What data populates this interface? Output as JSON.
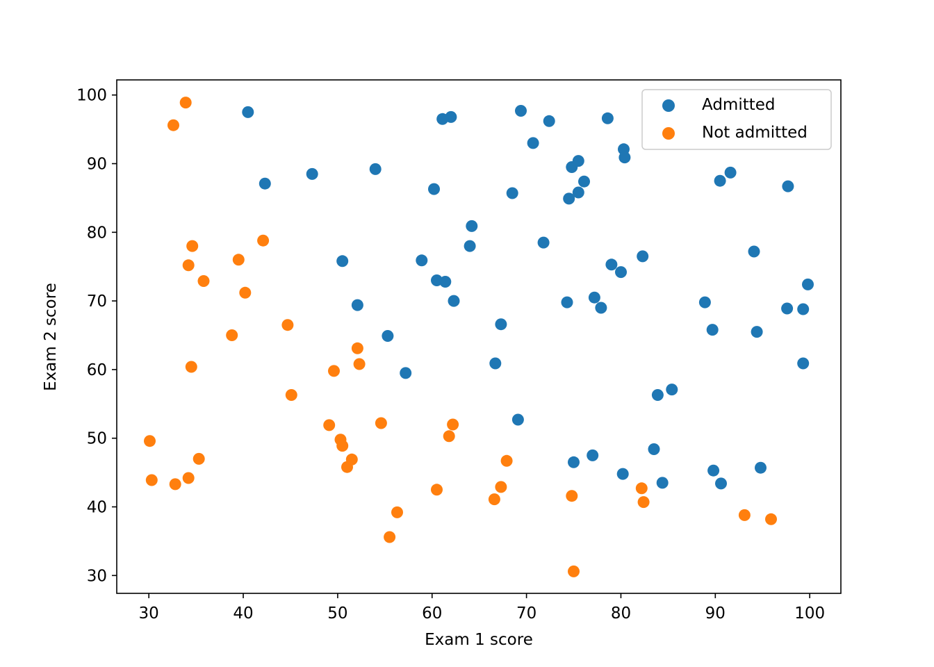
{
  "chart_data": {
    "type": "scatter",
    "xlabel": "Exam 1 score",
    "ylabel": "Exam 2 score",
    "xlim": [
      26.6,
      103.3
    ],
    "ylim": [
      27.4,
      102.2
    ],
    "x_ticks": [
      30,
      40,
      50,
      60,
      70,
      80,
      90,
      100
    ],
    "y_ticks": [
      30,
      40,
      50,
      60,
      70,
      80,
      90,
      100
    ],
    "grid": false,
    "legend_position": "top-right",
    "series": [
      {
        "name": "Admitted",
        "color": "#1f77b4",
        "points": [
          [
            40.5,
            97.5
          ],
          [
            62.0,
            96.8
          ],
          [
            61.1,
            96.5
          ],
          [
            69.4,
            97.7
          ],
          [
            72.4,
            96.2
          ],
          [
            78.6,
            96.6
          ],
          [
            70.7,
            93.0
          ],
          [
            80.3,
            92.1
          ],
          [
            80.4,
            90.9
          ],
          [
            75.5,
            90.4
          ],
          [
            74.8,
            89.5
          ],
          [
            42.3,
            87.1
          ],
          [
            47.3,
            88.5
          ],
          [
            54.0,
            89.2
          ],
          [
            60.2,
            86.3
          ],
          [
            68.5,
            85.7
          ],
          [
            75.5,
            85.8
          ],
          [
            76.1,
            87.4
          ],
          [
            74.5,
            84.9
          ],
          [
            90.5,
            87.5
          ],
          [
            91.6,
            88.7
          ],
          [
            97.7,
            86.7
          ],
          [
            64.2,
            80.9
          ],
          [
            64.0,
            78.0
          ],
          [
            71.8,
            78.5
          ],
          [
            82.3,
            76.5
          ],
          [
            79.0,
            75.3
          ],
          [
            80.0,
            74.2
          ],
          [
            94.1,
            77.2
          ],
          [
            50.5,
            75.8
          ],
          [
            58.9,
            75.9
          ],
          [
            60.5,
            73.0
          ],
          [
            61.4,
            72.8
          ],
          [
            62.3,
            70.0
          ],
          [
            52.1,
            69.4
          ],
          [
            74.3,
            69.8
          ],
          [
            77.2,
            70.5
          ],
          [
            77.9,
            69.0
          ],
          [
            88.9,
            69.8
          ],
          [
            99.8,
            72.4
          ],
          [
            97.6,
            68.9
          ],
          [
            99.3,
            68.8
          ],
          [
            67.3,
            66.6
          ],
          [
            89.7,
            65.8
          ],
          [
            94.4,
            65.5
          ],
          [
            55.3,
            64.9
          ],
          [
            66.7,
            60.9
          ],
          [
            57.2,
            59.5
          ],
          [
            99.3,
            60.9
          ],
          [
            83.9,
            56.3
          ],
          [
            85.4,
            57.1
          ],
          [
            69.1,
            52.7
          ],
          [
            75.0,
            46.5
          ],
          [
            77.0,
            47.5
          ],
          [
            83.5,
            48.4
          ],
          [
            80.2,
            44.8
          ],
          [
            84.4,
            43.5
          ],
          [
            89.8,
            45.3
          ],
          [
            90.6,
            43.4
          ],
          [
            94.8,
            45.7
          ]
        ]
      },
      {
        "name": "Not admitted",
        "color": "#ff7f0e",
        "points": [
          [
            33.9,
            98.9
          ],
          [
            32.6,
            95.6
          ],
          [
            42.1,
            78.8
          ],
          [
            34.6,
            78.0
          ],
          [
            34.2,
            75.2
          ],
          [
            39.5,
            76.0
          ],
          [
            35.8,
            72.9
          ],
          [
            40.2,
            71.2
          ],
          [
            44.7,
            66.5
          ],
          [
            38.8,
            65.0
          ],
          [
            52.1,
            63.1
          ],
          [
            52.3,
            60.8
          ],
          [
            49.6,
            59.8
          ],
          [
            34.5,
            60.4
          ],
          [
            45.1,
            56.3
          ],
          [
            49.1,
            51.9
          ],
          [
            54.6,
            52.2
          ],
          [
            62.2,
            52.0
          ],
          [
            61.8,
            50.3
          ],
          [
            30.1,
            49.6
          ],
          [
            50.3,
            49.8
          ],
          [
            50.5,
            48.9
          ],
          [
            51.5,
            46.9
          ],
          [
            51.0,
            45.8
          ],
          [
            35.3,
            47.0
          ],
          [
            67.9,
            46.7
          ],
          [
            30.3,
            43.9
          ],
          [
            34.2,
            44.2
          ],
          [
            32.8,
            43.3
          ],
          [
            60.5,
            42.5
          ],
          [
            67.3,
            42.9
          ],
          [
            66.6,
            41.1
          ],
          [
            74.8,
            41.6
          ],
          [
            82.2,
            42.7
          ],
          [
            82.4,
            40.7
          ],
          [
            56.3,
            39.2
          ],
          [
            93.1,
            38.8
          ],
          [
            95.9,
            38.2
          ],
          [
            55.5,
            35.6
          ],
          [
            75.0,
            30.6
          ]
        ]
      }
    ]
  }
}
